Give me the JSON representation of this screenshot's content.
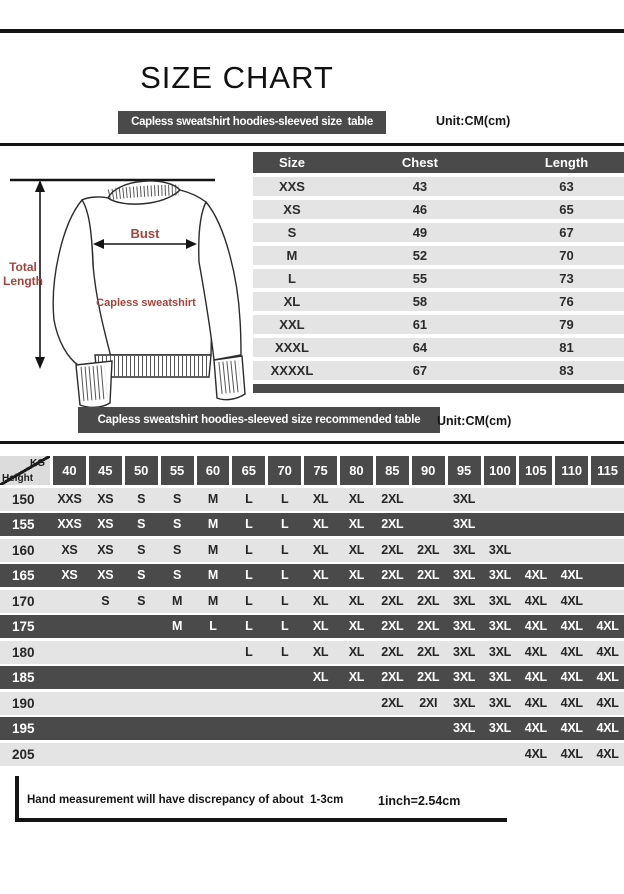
{
  "page_title": "SIZE CHART",
  "section1": {
    "banner": "Capless sweatshirt hoodies-sleeved size  table",
    "unit": "Unit:CM(cm)"
  },
  "illustration": {
    "total_length_label": "Total Length",
    "bust_label": "Bust",
    "garment_label": "Capless sweatshirt"
  },
  "size_table": {
    "columns": [
      "Size",
      "Chest",
      "Length"
    ],
    "rows": [
      [
        "XXS",
        "43",
        "63"
      ],
      [
        "XS",
        "46",
        "65"
      ],
      [
        "S",
        "49",
        "67"
      ],
      [
        "M",
        "52",
        "70"
      ],
      [
        "L",
        "55",
        "73"
      ],
      [
        "XL",
        "58",
        "76"
      ],
      [
        "XXL",
        "61",
        "79"
      ],
      [
        "XXXL",
        "64",
        "81"
      ],
      [
        "XXXXL",
        "67",
        "83"
      ]
    ]
  },
  "section2": {
    "banner": "Capless sweatshirt hoodies-sleeved size recommended table",
    "unit": "Unit:CM(cm)"
  },
  "matrix": {
    "corner_top": "KG",
    "corner_bottom": "Height",
    "weights": [
      "40",
      "45",
      "50",
      "55",
      "60",
      "65",
      "70",
      "75",
      "80",
      "85",
      "90",
      "95",
      "100",
      "105",
      "110",
      "115"
    ],
    "rows": [
      {
        "height": "150",
        "cells": [
          "XXS",
          "XS",
          "S",
          "S",
          "M",
          "L",
          "L",
          "XL",
          "XL",
          "2XL",
          "",
          "3XL",
          "",
          "",
          "",
          ""
        ]
      },
      {
        "height": "155",
        "cells": [
          "XXS",
          "XS",
          "S",
          "S",
          "M",
          "L",
          "L",
          "XL",
          "XL",
          "2XL",
          "",
          "3XL",
          "",
          "",
          "",
          ""
        ]
      },
      {
        "height": "160",
        "cells": [
          "XS",
          "XS",
          "S",
          "S",
          "M",
          "L",
          "L",
          "XL",
          "XL",
          "2XL",
          "2XL",
          "3XL",
          "3XL",
          "",
          "",
          ""
        ]
      },
      {
        "height": "165",
        "cells": [
          "XS",
          "XS",
          "S",
          "S",
          "M",
          "L",
          "L",
          "XL",
          "XL",
          "2XL",
          "2XL",
          "3XL",
          "3XL",
          "4XL",
          "4XL",
          ""
        ]
      },
      {
        "height": "170",
        "cells": [
          "",
          "S",
          "S",
          "M",
          "M",
          "L",
          "L",
          "XL",
          "XL",
          "2XL",
          "2XL",
          "3XL",
          "3XL",
          "4XL",
          "4XL",
          ""
        ]
      },
      {
        "height": "175",
        "cells": [
          "",
          "",
          "",
          "M",
          "L",
          "L",
          "L",
          "XL",
          "XL",
          "2XL",
          "2XL",
          "3XL",
          "3XL",
          "4XL",
          "4XL",
          "4XL"
        ]
      },
      {
        "height": "180",
        "cells": [
          "",
          "",
          "",
          "",
          "",
          "L",
          "L",
          "XL",
          "XL",
          "2XL",
          "2XL",
          "3XL",
          "3XL",
          "4XL",
          "4XL",
          "4XL"
        ]
      },
      {
        "height": "185",
        "cells": [
          "",
          "",
          "",
          "",
          "",
          "",
          "",
          "XL",
          "XL",
          "2XL",
          "2XL",
          "3XL",
          "3XL",
          "4XL",
          "4XL",
          "4XL"
        ]
      },
      {
        "height": "190",
        "cells": [
          "",
          "",
          "",
          "",
          "",
          "",
          "",
          "",
          "",
          "2XL",
          "2XI",
          "3XL",
          "3XL",
          "4XL",
          "4XL",
          "4XL"
        ]
      },
      {
        "height": "195",
        "cells": [
          "",
          "",
          "",
          "",
          "",
          "",
          "",
          "",
          "",
          "",
          "",
          "3XL",
          "3XL",
          "4XL",
          "4XL",
          "4XL"
        ]
      },
      {
        "height": "205",
        "cells": [
          "",
          "",
          "",
          "",
          "",
          "",
          "",
          "",
          "",
          "",
          "",
          "",
          "",
          "4XL",
          "4XL",
          "4XL"
        ]
      }
    ]
  },
  "footer": {
    "note": "Hand measurement will have discrepancy of about  1-3cm",
    "conversion": "1inch=2.54cm"
  },
  "colors": {
    "dark_gray": "#4a4a4a",
    "stripe_gray": "#e4e4e4",
    "accent_red": "#a3453e",
    "line_black": "#141414"
  }
}
